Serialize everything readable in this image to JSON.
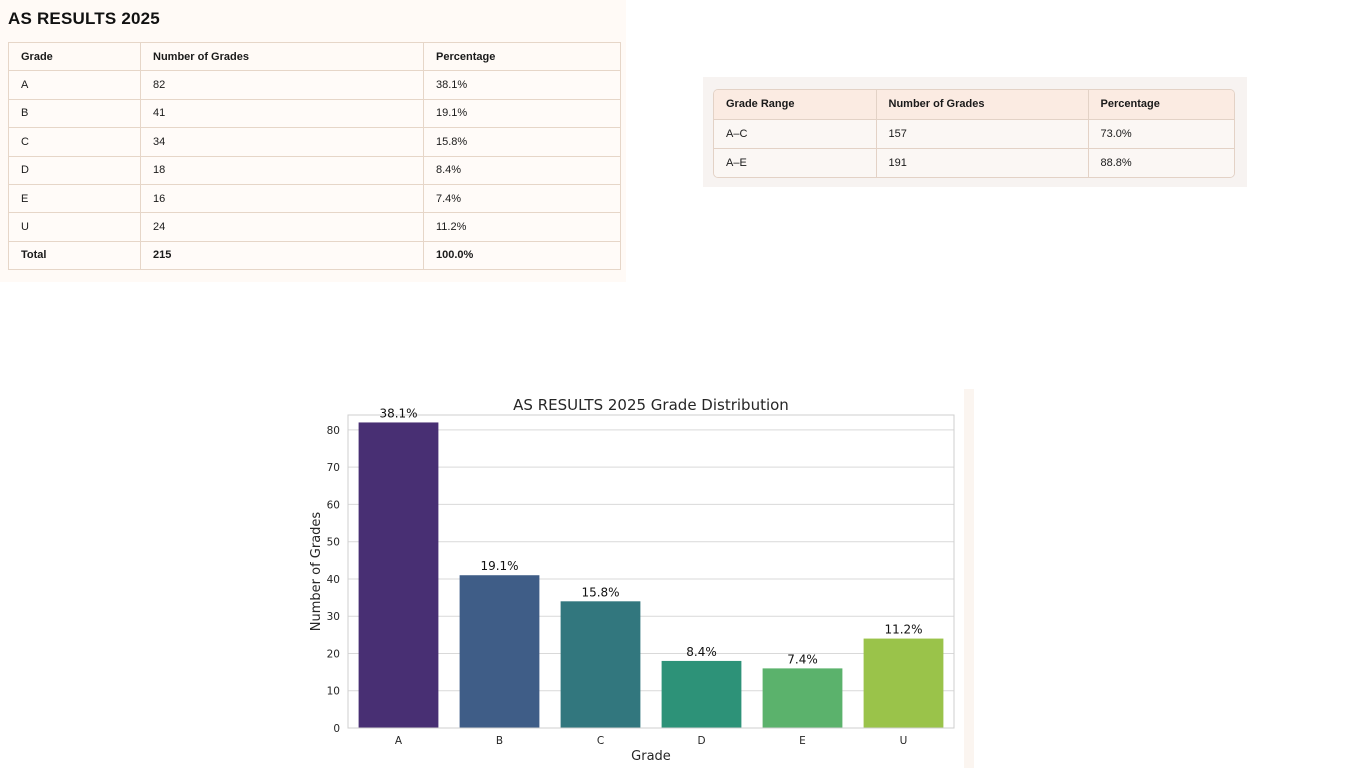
{
  "page_title": "AS RESULTS 2025",
  "grades_table": {
    "headers": [
      "Grade",
      "Number of Grades",
      "Percentage"
    ],
    "rows": [
      {
        "grade": "A",
        "count": "82",
        "pct": "38.1%"
      },
      {
        "grade": "B",
        "count": "41",
        "pct": "19.1%"
      },
      {
        "grade": "C",
        "count": "34",
        "pct": "15.8%"
      },
      {
        "grade": "D",
        "count": "18",
        "pct": "8.4%"
      },
      {
        "grade": "E",
        "count": "16",
        "pct": "7.4%"
      },
      {
        "grade": "U",
        "count": "24",
        "pct": "11.2%"
      }
    ],
    "total": {
      "label": "Total",
      "count": "215",
      "pct": "100.0%"
    }
  },
  "range_table": {
    "headers": [
      "Grade Range",
      "Number of Grades",
      "Percentage"
    ],
    "rows": [
      {
        "range": "A–C",
        "count": "157",
        "pct": "73.0%"
      },
      {
        "range": "A–E",
        "count": "191",
        "pct": "88.8%"
      }
    ]
  },
  "chart_data": {
    "type": "bar",
    "title": "AS RESULTS 2025 Grade Distribution",
    "xlabel": "Grade",
    "ylabel": "Number of Grades",
    "categories": [
      "A",
      "B",
      "C",
      "D",
      "E",
      "U"
    ],
    "values": [
      82,
      41,
      34,
      18,
      16,
      24
    ],
    "data_labels": [
      "38.1%",
      "19.1%",
      "15.8%",
      "8.4%",
      "7.4%",
      "11.2%"
    ],
    "colors": [
      "#482f73",
      "#3f5d87",
      "#32777e",
      "#2d9278",
      "#5bb26c",
      "#9ac34a"
    ],
    "ylim": [
      0,
      84
    ],
    "yticks": [
      0,
      10,
      20,
      30,
      40,
      50,
      60,
      70,
      80
    ],
    "grid": true
  }
}
